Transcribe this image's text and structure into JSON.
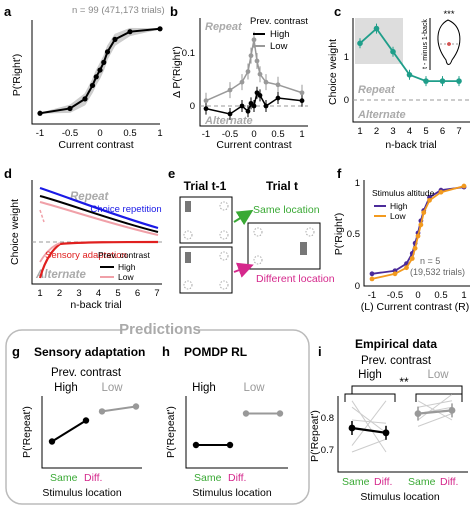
{
  "panels": {
    "a": {
      "letter": "a",
      "annotation": "n = 99 (471,173 trials)",
      "ylabel": "P('Right')",
      "xlabel": "Current contrast",
      "xticks": [
        "-1",
        "-0.5",
        "0",
        "0.5",
        "1"
      ]
    },
    "b": {
      "letter": "b",
      "ylabel": "Δ P('Right')",
      "xlabel": "Current contrast",
      "legend_title": "Prev. contrast",
      "repeat": "Repeat",
      "alternate": "Alternate",
      "yticks": [
        "0",
        "0.1"
      ],
      "xticks": [
        "-1",
        "-0.5",
        "0",
        "0.5",
        "1"
      ]
    },
    "c": {
      "letter": "c",
      "ylabel": "Choice weight",
      "xlabel": "n-back trial",
      "repeat": "Repeat",
      "alternate": "Alternate",
      "yticks": [
        "0",
        "1"
      ],
      "xticks": [
        "1",
        "2",
        "3",
        "4",
        "5",
        "6",
        "7"
      ],
      "inset_ylabel": "t - minus 1-back",
      "inset_sig": "***"
    },
    "d": {
      "letter": "d",
      "ylabel": "Choice weight",
      "xlabel": "n-back trial",
      "repeat": "Repeat",
      "alternate": "Alternate",
      "choice_rep": "Choice repetition",
      "sensory": "Sensory adaptation",
      "legend_title": "Prev. contrast",
      "legend_high": "High",
      "legend_low": "Low",
      "xticks": [
        "1",
        "2",
        "3",
        "4",
        "5",
        "6",
        "7"
      ]
    },
    "e": {
      "letter": "e",
      "trial_prev": "Trial t-1",
      "trial_cur": "Trial t",
      "same": "Same location",
      "different": "Different location"
    },
    "f": {
      "letter": "f",
      "ylabel": "P('Right')",
      "xlabel": "(L) Current contrast (R)",
      "legend_title": "Stimulus altitude",
      "legend_high": "High",
      "legend_low": "Low",
      "annotation_n": "n = 5",
      "annotation_trials": "(19,532 trials)",
      "xticks": [
        "-1",
        "-0.5",
        "0",
        "0.5",
        "1"
      ],
      "yticks": [
        "0",
        "0.5",
        "1"
      ]
    },
    "g": {
      "letter": "g",
      "title": "Sensory adaptation",
      "subtitle": "Prev. contrast",
      "high": "High",
      "low": "Low",
      "ylabel": "P('Repeat')",
      "xlabel": "Stimulus location",
      "same": "Same",
      "diff": "Diff."
    },
    "h": {
      "letter": "h",
      "title": "POMDP RL",
      "high": "High",
      "low": "Low",
      "ylabel": "P('Repeat')",
      "xlabel": "Stimulus location",
      "same": "Same",
      "diff": "Diff."
    },
    "i": {
      "letter": "i",
      "title": "Empirical data",
      "subtitle": "Prev. contrast",
      "high": "High",
      "low": "Low",
      "sig": "**",
      "ylabel": "P('Repeat')",
      "xlabel": "Stimulus location",
      "same": "Same",
      "diff": "Diff.",
      "yticks": [
        "0.7",
        "0.8"
      ]
    }
  },
  "predictions_label": "Predictions",
  "colors": {
    "high": "#000000",
    "low": "#999999",
    "teal": "#1f9e8a",
    "blue": "#1a1ae6",
    "red": "#e0201f",
    "pink": "#f0a0a8",
    "green": "#3aa935",
    "magenta": "#d5288c",
    "purple": "#4b2b9a",
    "orange": "#f29a1f"
  },
  "chart_data": [
    {
      "type": "line",
      "panel": "a",
      "xlabel": "Current contrast",
      "ylabel": "P('Right')",
      "xlim": [
        -1,
        1
      ],
      "x": [
        -1,
        -0.5,
        -0.25,
        -0.125,
        -0.0625,
        0,
        0.0625,
        0.125,
        0.25,
        0.5,
        1
      ],
      "values": [
        0.07,
        0.12,
        0.22,
        0.36,
        0.45,
        0.52,
        0.6,
        0.71,
        0.84,
        0.92,
        0.95
      ]
    },
    {
      "type": "line",
      "panel": "b",
      "xlabel": "Current contrast",
      "ylabel": "Δ P('Right')",
      "ylim": [
        -0.05,
        0.15
      ],
      "x": [
        -1,
        -0.5,
        -0.25,
        -0.125,
        -0.0625,
        0,
        0.0625,
        0.125,
        0.25,
        0.5,
        1
      ],
      "series": [
        {
          "name": "High",
          "values": [
            -0.005,
            -0.015,
            0.0,
            -0.01,
            0.005,
            0.0,
            0.025,
            0.02,
            0.0,
            0.015,
            0.01
          ]
        },
        {
          "name": "Low",
          "values": [
            0.01,
            0.03,
            0.045,
            0.065,
            0.095,
            0.125,
            0.085,
            0.06,
            0.045,
            0.04,
            0.025
          ]
        }
      ]
    },
    {
      "type": "line",
      "panel": "c",
      "xlabel": "n-back trial",
      "ylabel": "Choice weight",
      "ylim": [
        -0.5,
        2
      ],
      "x": [
        1,
        2,
        3,
        4,
        5,
        6,
        7
      ],
      "values": [
        1.35,
        1.7,
        1.15,
        0.6,
        0.45,
        0.45,
        0.45
      ]
    },
    {
      "type": "line",
      "panel": "f",
      "xlabel": "(L) Current contrast (R)",
      "ylabel": "P('Right')",
      "ylim": [
        0,
        1
      ],
      "x": [
        -1,
        -0.5,
        -0.25,
        -0.125,
        -0.0625,
        0,
        0.0625,
        0.125,
        0.25,
        0.5,
        1
      ],
      "series": [
        {
          "name": "High",
          "values": [
            0.1,
            0.13,
            0.2,
            0.3,
            0.4,
            0.5,
            0.62,
            0.72,
            0.85,
            0.92,
            0.95
          ]
        },
        {
          "name": "Low",
          "values": [
            0.05,
            0.1,
            0.16,
            0.25,
            0.35,
            0.47,
            0.58,
            0.7,
            0.82,
            0.9,
            0.96
          ]
        }
      ]
    },
    {
      "type": "line",
      "panel": "g",
      "categories": [
        "Same",
        "Diff."
      ],
      "series": [
        {
          "name": "High",
          "values": [
            0.35,
            0.65
          ]
        },
        {
          "name": "Low",
          "values": [
            0.78,
            0.85
          ]
        }
      ]
    },
    {
      "type": "line",
      "panel": "h",
      "categories": [
        "Same",
        "Diff."
      ],
      "series": [
        {
          "name": "High",
          "values": [
            0.3,
            0.3
          ]
        },
        {
          "name": "Low",
          "values": [
            0.75,
            0.75
          ]
        }
      ]
    },
    {
      "type": "line",
      "panel": "i",
      "categories": [
        "Same",
        "Diff."
      ],
      "ylim": [
        0.65,
        0.9
      ],
      "series": [
        {
          "name": "High",
          "values": [
            0.775,
            0.76
          ]
        },
        {
          "name": "Low",
          "values": [
            0.82,
            0.83
          ]
        }
      ]
    }
  ]
}
